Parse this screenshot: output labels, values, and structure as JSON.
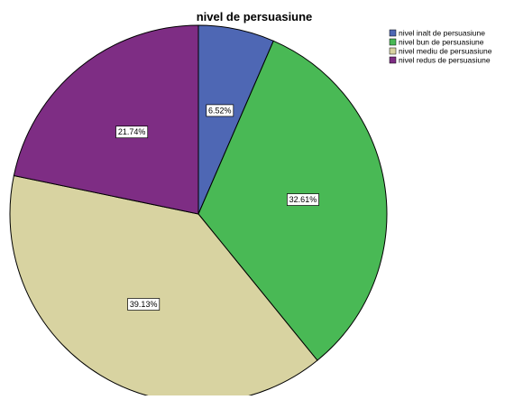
{
  "chart_data": {
    "type": "pie",
    "title": "nivel de persuasiune",
    "categories": [
      "nivel inalt de persuasiune",
      "nivel bun de persuasiune",
      "nivel mediu de persuasiune",
      "nivel redus de persuasiune"
    ],
    "values": [
      6.52,
      32.61,
      39.13,
      21.74
    ],
    "value_labels": [
      "6.52%",
      "32.61%",
      "39.13%",
      "21.74%"
    ],
    "colors": [
      "#4e67b4",
      "#49b955",
      "#d8d3a1",
      "#7e2d84"
    ],
    "start_angle": "12 o'clock",
    "direction": "clockwise",
    "legend_position": "top-right",
    "slice_border_color": "#000000"
  }
}
